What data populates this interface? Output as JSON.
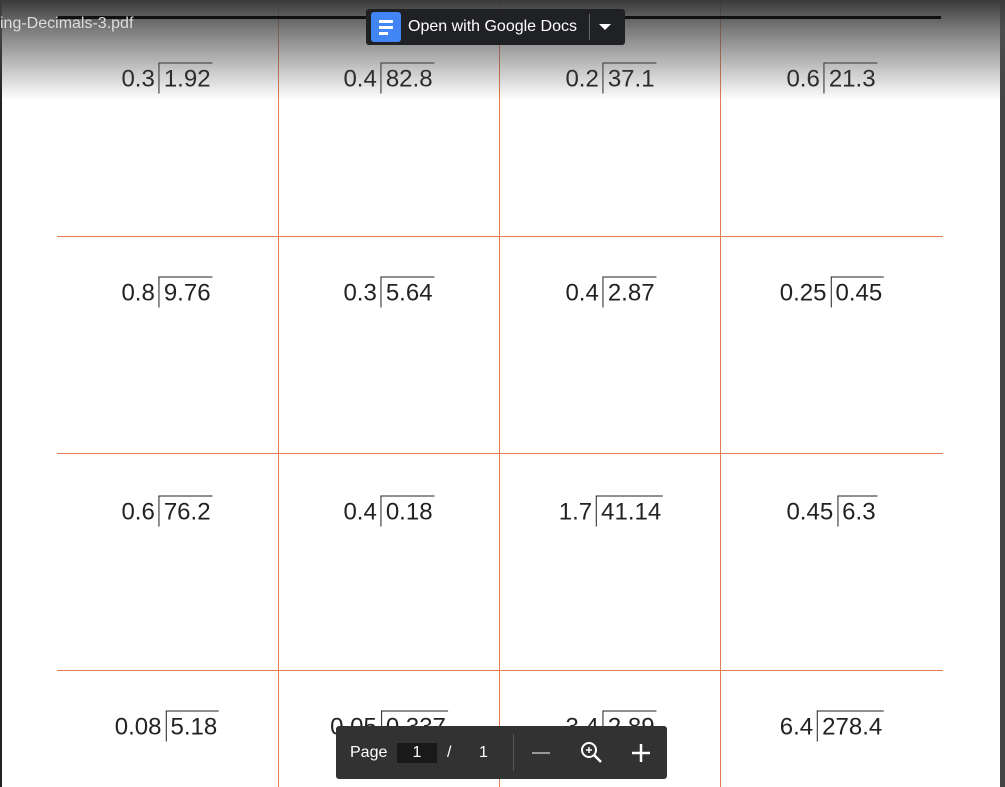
{
  "viewer": {
    "file_name": "ing-Decimals-3.pdf",
    "open_button": "Open with Google Docs",
    "page_label": "Page",
    "page_current": "1",
    "page_separator": "/",
    "page_total": "1"
  },
  "worksheet": {
    "problems": [
      {
        "divisor": "0.3",
        "dividend": "1.92"
      },
      {
        "divisor": "0.4",
        "dividend": "82.8"
      },
      {
        "divisor": "0.2",
        "dividend": "37.1"
      },
      {
        "divisor": "0.6",
        "dividend": "21.3"
      },
      {
        "divisor": "0.8",
        "dividend": "9.76"
      },
      {
        "divisor": "0.3",
        "dividend": "5.64"
      },
      {
        "divisor": "0.4",
        "dividend": "2.87"
      },
      {
        "divisor": "0.25",
        "dividend": "0.45"
      },
      {
        "divisor": "0.6",
        "dividend": "76.2"
      },
      {
        "divisor": "0.4",
        "dividend": "0.18"
      },
      {
        "divisor": "1.7",
        "dividend": "41.14"
      },
      {
        "divisor": "0.45",
        "dividend": "6.3"
      },
      {
        "divisor": "0.08",
        "dividend": "5.18"
      },
      {
        "divisor": "0.05",
        "dividend": "0.337"
      },
      {
        "divisor": "3.4",
        "dividend": "2.89"
      },
      {
        "divisor": "6.4",
        "dividend": "278.4"
      }
    ]
  }
}
